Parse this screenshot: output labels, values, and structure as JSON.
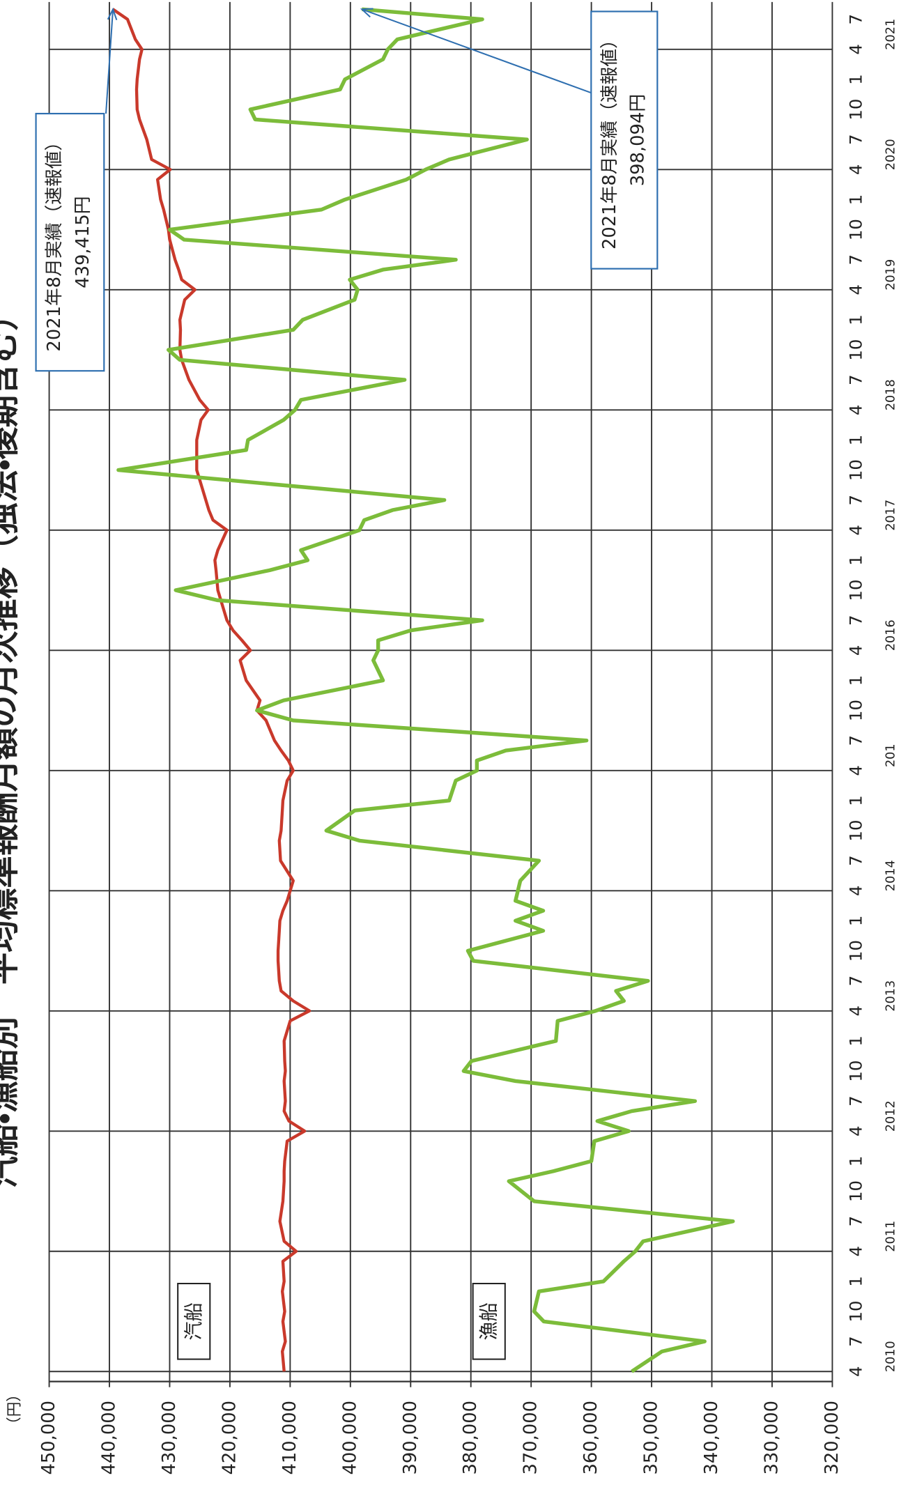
{
  "chart_data": {
    "type": "line",
    "title": "汽船・漁船別　平均標準報酬月額の月次推移（独法・後期含む）",
    "y_label": "（円）",
    "x": [
      "2010-04",
      "2010-06",
      "2010-07",
      "2010-09",
      "2010-10",
      "2010-12",
      "2011-01",
      "2011-03",
      "2011-04",
      "2011-05",
      "2011-07",
      "2011-09",
      "2011-11",
      "2011-12",
      "2012-01",
      "2012-03",
      "2012-04",
      "2012-05",
      "2012-06",
      "2012-07",
      "2012-09",
      "2012-10",
      "2012-11",
      "2013-01",
      "2013-03",
      "2013-04",
      "2013-05",
      "2013-06",
      "2013-07",
      "2013-09",
      "2013-10",
      "2013-12",
      "2014-01",
      "2014-02",
      "2014-03",
      "2014-05",
      "2014-07",
      "2014-09",
      "2014-10",
      "2014-12",
      "2015-01",
      "2015-03",
      "2015-04",
      "2015-05",
      "2015-06",
      "2015-07",
      "2015-09",
      "2015-10",
      "2015-11",
      "2016-01",
      "2016-03",
      "2016-04",
      "2016-05",
      "2016-06",
      "2016-07",
      "2016-09",
      "2016-10",
      "2016-12",
      "2017-01",
      "2017-02",
      "2017-04",
      "2017-05",
      "2017-06",
      "2017-07",
      "2017-09",
      "2017-10",
      "2017-12",
      "2018-01",
      "2018-03",
      "2018-04",
      "2018-05",
      "2018-07",
      "2018-09",
      "2018-10",
      "2018-12",
      "2019-01",
      "2019-03",
      "2019-04",
      "2019-05",
      "2019-06",
      "2019-07",
      "2019-09",
      "2019-10",
      "2019-12",
      "2020-01",
      "2020-03",
      "2020-04",
      "2020-05",
      "2020-07",
      "2020-09",
      "2020-10",
      "2020-12",
      "2021-01",
      "2021-03",
      "2021-04",
      "2021-05",
      "2021-07",
      "2021-08"
    ],
    "series": [
      {
        "name": "汽船",
        "color": "#c9392b",
        "values": [
          411000,
          411300,
          410800,
          411200,
          410900,
          411300,
          411000,
          411200,
          409000,
          411000,
          411700,
          411200,
          411000,
          411000,
          410900,
          410500,
          407600,
          410200,
          411000,
          410800,
          411000,
          410800,
          410900,
          411000,
          410000,
          406800,
          409500,
          411500,
          411800,
          412000,
          412000,
          411800,
          411700,
          411200,
          410500,
          409500,
          411600,
          411800,
          411500,
          411300,
          411200,
          410500,
          409500,
          410300,
          411500,
          412600,
          414000,
          415500,
          415000,
          417300,
          418300,
          416600,
          418000,
          419500,
          420500,
          421500,
          422000,
          422300,
          422500,
          422000,
          420500,
          422800,
          423500,
          424000,
          425000,
          425500,
          425500,
          425500,
          424800,
          423600,
          425000,
          426800,
          428000,
          428300,
          428200,
          428300,
          427500,
          425800,
          428000,
          428500,
          429100,
          430000,
          430200,
          431000,
          431500,
          432000,
          429900,
          433000,
          433800,
          435000,
          435400,
          435500,
          435400,
          435000,
          434600,
          435700,
          437000,
          439415
        ]
      },
      {
        "name": "漁船",
        "color": "#7cbc3a",
        "values": [
          353300,
          348300,
          341200,
          367900,
          369500,
          368700,
          358000,
          354600,
          352700,
          351400,
          336500,
          369500,
          373700,
          366300,
          360000,
          359500,
          353800,
          359000,
          353300,
          342800,
          372600,
          381200,
          379900,
          365900,
          365600,
          359300,
          354600,
          355900,
          350600,
          379600,
          380500,
          368000,
          372600,
          368000,
          372600,
          371800,
          368700,
          398500,
          404000,
          399300,
          383600,
          382500,
          379000,
          379000,
          374200,
          360800,
          409500,
          415500,
          411100,
          394600,
          396200,
          395400,
          395400,
          389900,
          378100,
          422100,
          429000,
          413400,
          407100,
          408200,
          398500,
          397700,
          393000,
          384400,
          420500,
          438500,
          417300,
          417000,
          411100,
          409200,
          408200,
          391000,
          428300,
          430200,
          409500,
          407900,
          399300,
          398800,
          400100,
          394600,
          382500,
          427600,
          430000,
          404800,
          400900,
          390700,
          387500,
          383600,
          370700,
          415800,
          416600,
          401700,
          400900,
          394600,
          393800,
          392200,
          378100,
          398094
        ]
      }
    ],
    "xlim": [
      "2010-03",
      "2021-09"
    ],
    "xticks": [
      {
        "value": "2010-04",
        "label": "4"
      },
      {
        "value": "2010-07",
        "label": "7"
      },
      {
        "value": "2010-10",
        "label": "10"
      },
      {
        "value": "2011-01",
        "label": "1"
      },
      {
        "value": "2011-04",
        "label": "4"
      },
      {
        "value": "2011-07",
        "label": "7"
      },
      {
        "value": "2011-10",
        "label": "10"
      },
      {
        "value": "2012-01",
        "label": "1"
      },
      {
        "value": "2012-04",
        "label": "4"
      },
      {
        "value": "2012-07",
        "label": "7"
      },
      {
        "value": "2012-10",
        "label": "10"
      },
      {
        "value": "2013-01",
        "label": "1"
      },
      {
        "value": "2013-04",
        "label": "4"
      },
      {
        "value": "2013-07",
        "label": "7"
      },
      {
        "value": "2013-10",
        "label": "10"
      },
      {
        "value": "2014-01",
        "label": "1"
      },
      {
        "value": "2014-04",
        "label": "4"
      },
      {
        "value": "2014-07",
        "label": "7"
      },
      {
        "value": "2014-10",
        "label": "10"
      },
      {
        "value": "2015-01",
        "label": "1"
      },
      {
        "value": "2015-04",
        "label": "4"
      },
      {
        "value": "2015-07",
        "label": "7"
      },
      {
        "value": "2015-10",
        "label": "10"
      },
      {
        "value": "2016-01",
        "label": "1"
      },
      {
        "value": "2016-04",
        "label": "4"
      },
      {
        "value": "2016-07",
        "label": "7"
      },
      {
        "value": "2016-10",
        "label": "10"
      },
      {
        "value": "2017-01",
        "label": "1"
      },
      {
        "value": "2017-04",
        "label": "4"
      },
      {
        "value": "2017-07",
        "label": "7"
      },
      {
        "value": "2017-10",
        "label": "10"
      },
      {
        "value": "2018-01",
        "label": "1"
      },
      {
        "value": "2018-04",
        "label": "4"
      },
      {
        "value": "2018-07",
        "label": "7"
      },
      {
        "value": "2018-10",
        "label": "10"
      },
      {
        "value": "2019-01",
        "label": "1"
      },
      {
        "value": "2019-04",
        "label": "4"
      },
      {
        "value": "2019-07",
        "label": "7"
      },
      {
        "value": "2019-10",
        "label": "10"
      },
      {
        "value": "2020-01",
        "label": "1"
      },
      {
        "value": "2020-04",
        "label": "4"
      },
      {
        "value": "2020-07",
        "label": "7"
      },
      {
        "value": "2020-10",
        "label": "10"
      },
      {
        "value": "2021-01",
        "label": "1"
      },
      {
        "value": "2021-04",
        "label": "4"
      },
      {
        "value": "2021-07",
        "label": "7"
      }
    ],
    "x_year_labels": [
      "2010",
      "2011",
      "2012",
      "2013",
      "2014",
      "201",
      "2016",
      "2017",
      "2018",
      "2019",
      "2020",
      "2021"
    ],
    "ylim": [
      450000,
      320000
    ],
    "yticks": [
      {
        "value": 450000,
        "label": "450,000"
      },
      {
        "value": 440000,
        "label": "440,000"
      },
      {
        "value": 430000,
        "label": "430,000"
      },
      {
        "value": 420000,
        "label": "420,000"
      },
      {
        "value": 410000,
        "label": "410,000"
      },
      {
        "value": 400000,
        "label": "400,000"
      },
      {
        "value": 390000,
        "label": "390,000"
      },
      {
        "value": 380000,
        "label": "380,000"
      },
      {
        "value": 370000,
        "label": "370,000"
      },
      {
        "value": 360000,
        "label": "360,000"
      },
      {
        "value": 350000,
        "label": "350,000"
      },
      {
        "value": 340000,
        "label": "340,000"
      },
      {
        "value": 330000,
        "label": "330,000"
      },
      {
        "value": 320000,
        "label": "320,000"
      }
    ],
    "grid": true,
    "annotations": [
      {
        "lines": [
          "2021年8月実績（速報値）",
          "439,415円"
        ]
      },
      {
        "lines": [
          "2021年8月実績（速報値）",
          "398,094円"
        ]
      }
    ]
  }
}
